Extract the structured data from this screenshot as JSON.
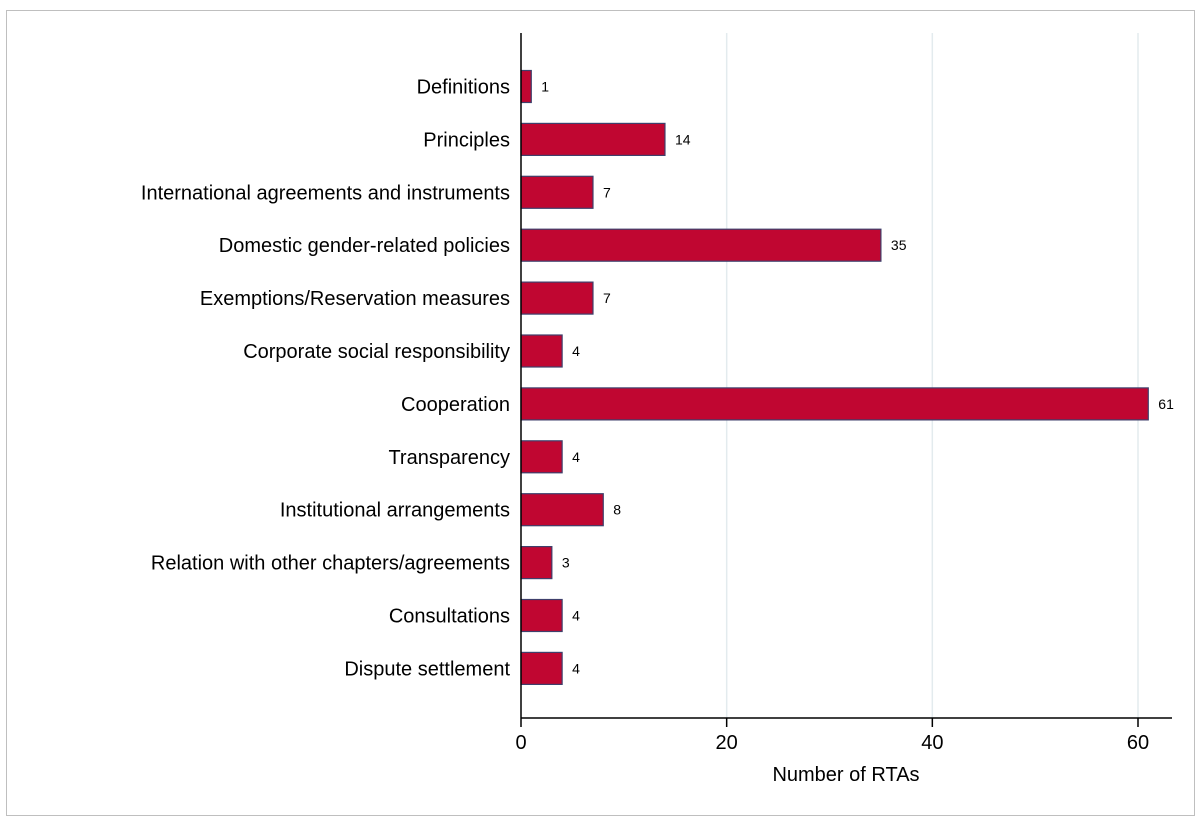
{
  "chart_data": {
    "type": "bar",
    "orientation": "horizontal",
    "categories": [
      "Definitions",
      "Principles",
      "International agreements and instruments",
      "Domestic gender-related policies",
      "Exemptions/Reservation measures",
      "Corporate social responsibility",
      "Cooperation",
      "Transparency",
      "Institutional arrangements",
      "Relation with other chapters/agreements",
      "Consultations",
      "Dispute settlement"
    ],
    "values": [
      1,
      14,
      7,
      35,
      7,
      4,
      61,
      4,
      8,
      3,
      4,
      4
    ],
    "xlabel": "Number of RTAs",
    "ylabel": "",
    "xlim": [
      0,
      63.5
    ],
    "xticks": [
      0,
      20,
      40,
      60
    ],
    "grid": "vertical",
    "bar_color": "#c00631",
    "bar_edge_color": "#3f3f6b",
    "grid_color": "#e3ebee",
    "data_labels": true
  }
}
